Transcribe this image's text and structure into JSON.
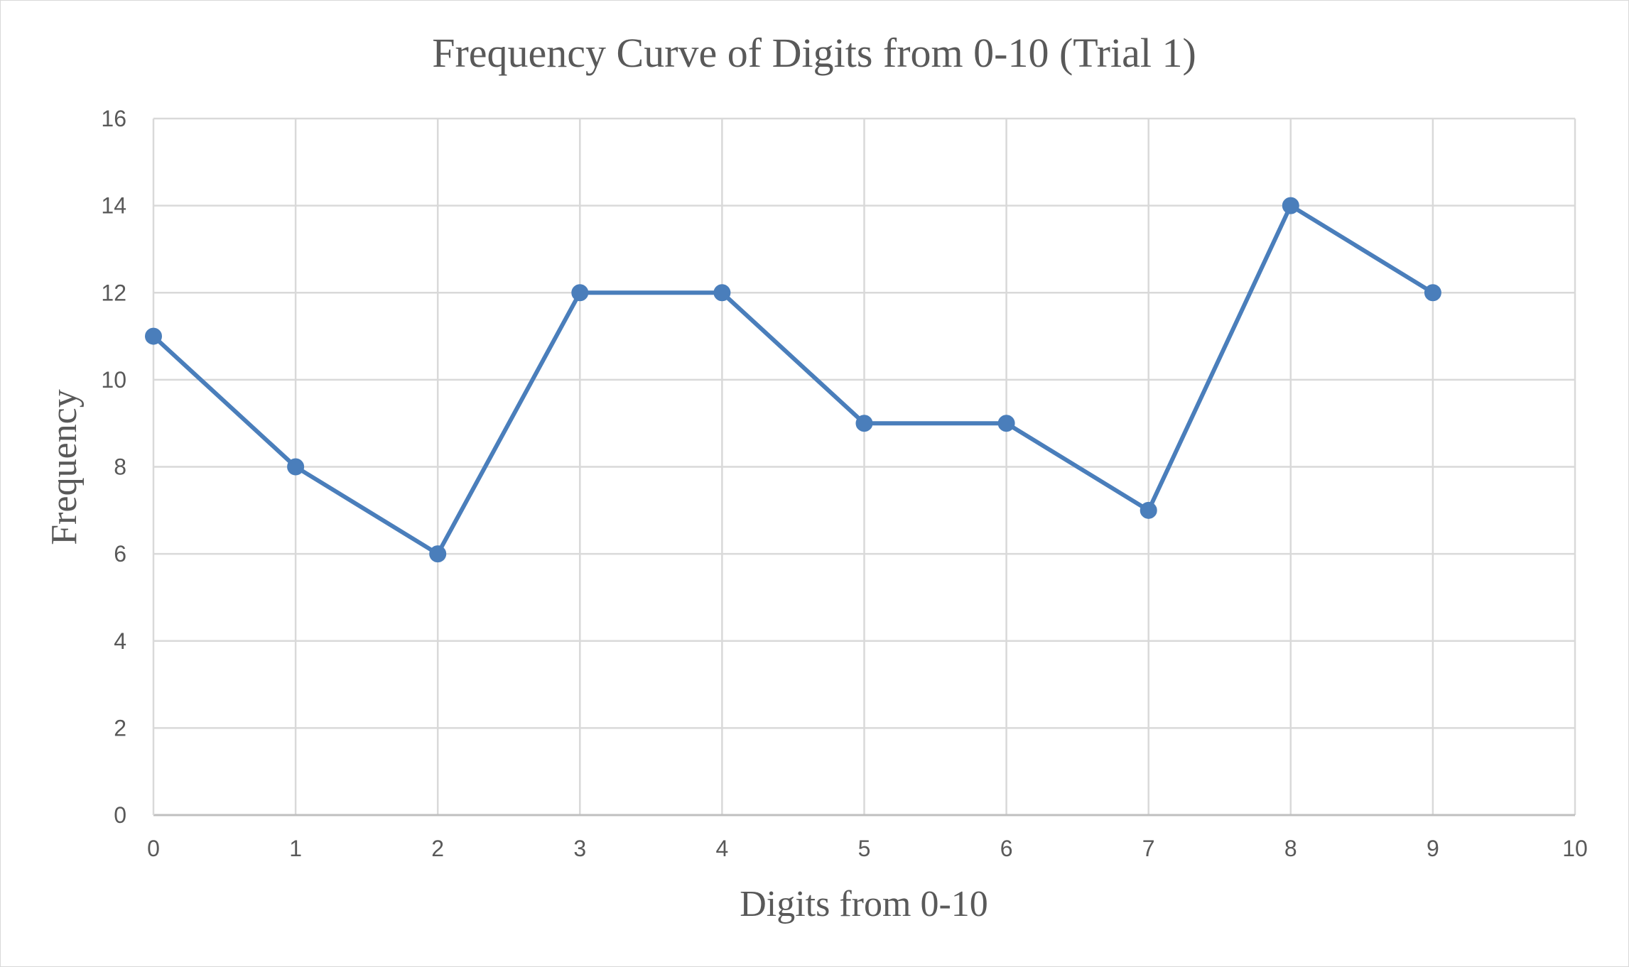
{
  "chart_data": {
    "type": "scatter",
    "title": "Frequency Curve of Digits from 0-10 (Trial 1)",
    "xlabel": "Digits from 0-10",
    "ylabel": "Frequency",
    "x": [
      0,
      1,
      2,
      3,
      4,
      5,
      6,
      7,
      8,
      9
    ],
    "series": [
      {
        "values": [
          11,
          8,
          6,
          12,
          12,
          9,
          9,
          7,
          14,
          12
        ],
        "color": "#4a7ebb",
        "marker": "circle",
        "line": "straight"
      }
    ],
    "xlim": [
      0,
      10
    ],
    "ylim": [
      0,
      16
    ],
    "x_ticks": [
      "0",
      "1",
      "2",
      "3",
      "4",
      "5",
      "6",
      "7",
      "8",
      "9",
      "10"
    ],
    "y_ticks": [
      "0",
      "2",
      "4",
      "6",
      "8",
      "10",
      "12",
      "14",
      "16"
    ],
    "grid": "both",
    "legend": "none"
  }
}
